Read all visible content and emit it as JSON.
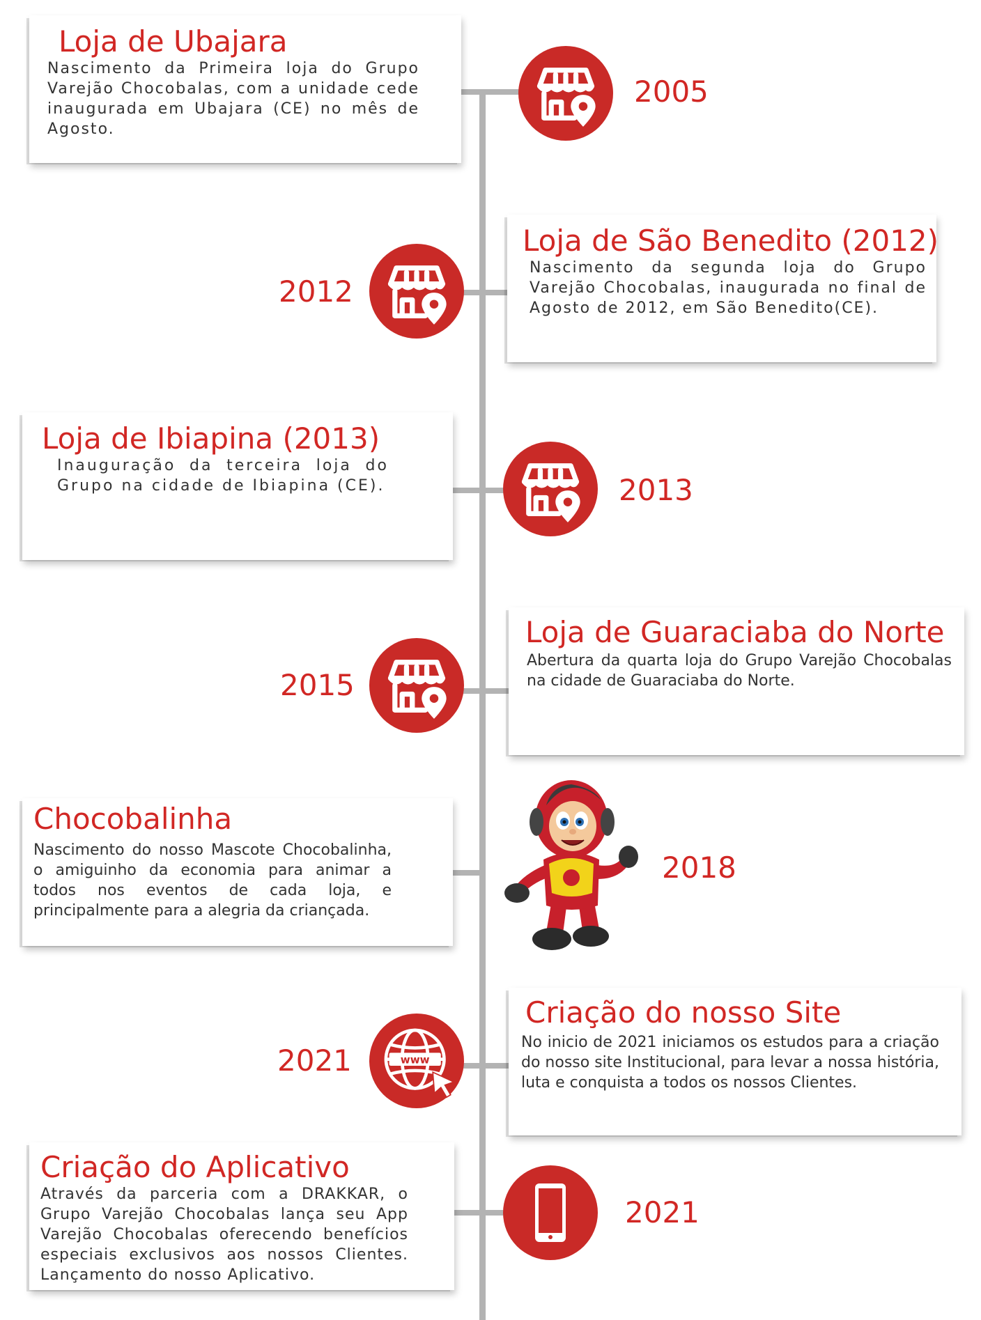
{
  "colors": {
    "accent": "#d12724",
    "circle": "#c92a27",
    "line": "#b3b3b3",
    "text": "#333333"
  },
  "events": [
    {
      "title": "Loja de Ubajara",
      "description": "Nascimento da Primeira loja do Grupo Varejão Chocobalas, com a unidade cede inaugurada em Ubajara (CE) no mês de Agosto.",
      "year": "2005",
      "icon": "store-location-icon"
    },
    {
      "title": "Loja de São Benedito (2012)",
      "description": "Nascimento da segunda loja do Grupo Varejão Chocobalas, inaugurada no final de Agosto de 2012, em São Benedito(CE).",
      "year": "2012",
      "icon": "store-location-icon"
    },
    {
      "title": "Loja de Ibiapina (2013)",
      "description": "Inauguração da terceira loja do Grupo na cidade de Ibiapina (CE).",
      "year": "2013",
      "icon": "store-location-icon"
    },
    {
      "title": "Loja de Guaraciaba do Norte",
      "description": "Abertura da quarta loja do Grupo Varejão Chocobalas na cidade de Guaraciaba do Norte.",
      "year": "2015",
      "icon": "store-location-icon"
    },
    {
      "title": "Chocobalinha",
      "description": "Nascimento do nosso Mascote Chocobalinha, o amiguinho da economia para animar a todos nos eventos de cada loja, e principalmente para a alegria da criançada.",
      "year": "2018",
      "icon": "mascot-image"
    },
    {
      "title": "Criação do nosso Site",
      "description": "No inicio de 2021 iniciamos os estudos para a criação do nosso site Institucional, para levar a nossa história, luta e conquista a todos os nossos Clientes.",
      "year": "2021",
      "icon": "globe-www-icon",
      "icon_text": "www"
    },
    {
      "title": "Criação do Aplicativo",
      "description": "Através da parceria com a DRAKKAR, o Grupo Varejão Chocobalas lança seu App Varejão Chocobalas oferecendo benefícios especiais exclusivos aos nossos Clientes. Lançamento do nosso Aplicativo.",
      "year": "2021",
      "icon": "smartphone-icon"
    }
  ]
}
